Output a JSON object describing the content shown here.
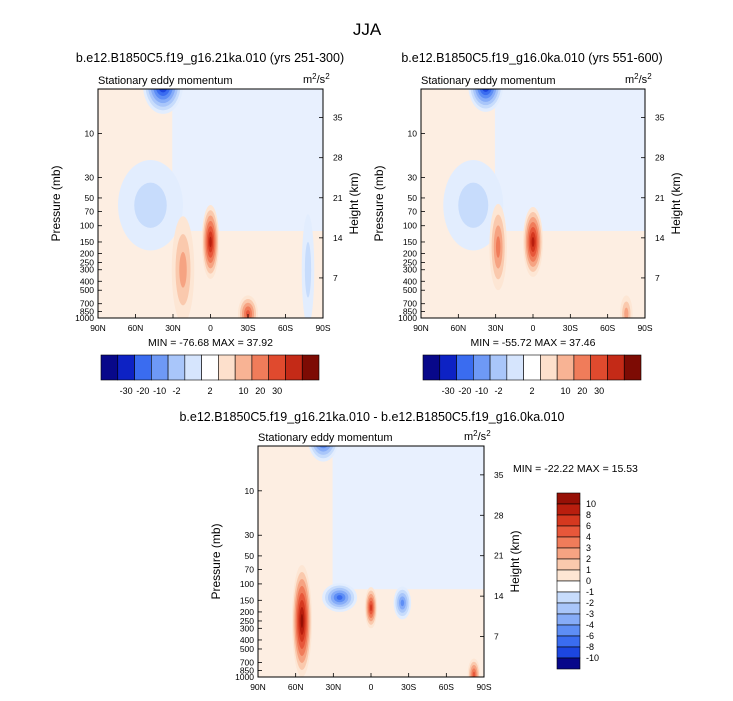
{
  "figure": {
    "title": "JJA"
  },
  "colors": {
    "neg": [
      "#08088a",
      "#0d22c4",
      "#1c46e0",
      "#3a6cf0",
      "#5e8ef5",
      "#86acf8",
      "#a9c6fa",
      "#c7dcfc",
      "#e2edfe"
    ],
    "pos": [
      "#fde6d4",
      "#fac9ad",
      "#f6a382",
      "#f07c5a",
      "#e7573a",
      "#d5381f",
      "#b91e0e",
      "#971006",
      "#6e0803"
    ]
  },
  "chart_data": [
    {
      "id": "panel1",
      "type": "heatmap",
      "title": "b.e12.B1850C5.f19_g16.21ka.010 (yrs 251-300)",
      "subtitle_left": "Stationary eddy momentum",
      "units_base": "m",
      "units_exp1": "2",
      "units_mid": "/s",
      "units_exp2": "2",
      "ylabel": "Pressure (mb)",
      "ylabel_right": "Height (km)",
      "xticks": [
        "90N",
        "60N",
        "30N",
        "0",
        "30S",
        "60S",
        "90S"
      ],
      "yticks": [
        "10",
        "30",
        "50",
        "70",
        "100",
        "150",
        "200",
        "250",
        "300",
        "400",
        "500",
        "700",
        "850",
        "1000"
      ],
      "heights": [
        "35",
        "28",
        "21",
        "14",
        "7"
      ],
      "stats": "MIN = -76.68  MAX = 37.92",
      "levels": [
        "-30",
        "-20",
        "-10",
        "-2",
        "2",
        "10",
        "20",
        "30"
      ],
      "blobs": [
        {
          "lat": 38,
          "p": 3.0,
          "level": 8,
          "sx": 16,
          "sy": 120,
          "sign": -1
        },
        {
          "lat": 48,
          "p": 60,
          "level": 2,
          "sx": 26,
          "sy": 200,
          "sign": -1
        },
        {
          "lat": 22,
          "p": 300,
          "level": 3,
          "sx": 9,
          "sy": 240,
          "sign": 1
        },
        {
          "lat": 0,
          "p": 150,
          "level": 7,
          "sx": 7,
          "sy": 160,
          "sign": 1
        },
        {
          "lat": -78,
          "p": 300,
          "level": 2,
          "sx": 5,
          "sy": 250,
          "sign": -1
        },
        {
          "lat": -30,
          "p": 900,
          "level": 5,
          "sx": 8,
          "sy": 70,
          "sign": 1
        }
      ]
    },
    {
      "id": "panel2",
      "type": "heatmap",
      "title": "b.e12.B1850C5.f19_g16.0ka.010 (yrs 551-600)",
      "subtitle_left": "Stationary eddy momentum",
      "units_base": "m",
      "units_exp1": "2",
      "units_mid": "/s",
      "units_exp2": "2",
      "ylabel": "Pressure (mb)",
      "ylabel_right": "Height (km)",
      "xticks": [
        "90N",
        "60N",
        "30N",
        "0",
        "30S",
        "60S",
        "90S"
      ],
      "yticks": [
        "10",
        "30",
        "50",
        "70",
        "100",
        "150",
        "200",
        "250",
        "300",
        "400",
        "500",
        "700",
        "850",
        "1000"
      ],
      "heights": [
        "35",
        "28",
        "21",
        "14",
        "7"
      ],
      "stats": "MIN = -55.72  MAX = 37.46",
      "levels": [
        "-30",
        "-20",
        "-10",
        "-2",
        "2",
        "10",
        "20",
        "30"
      ],
      "blobs": [
        {
          "lat": 38,
          "p": 3.0,
          "level": 8,
          "sx": 14,
          "sy": 110,
          "sign": -1
        },
        {
          "lat": 48,
          "p": 60,
          "level": 2,
          "sx": 24,
          "sy": 200,
          "sign": -1
        },
        {
          "lat": 28,
          "p": 170,
          "level": 4,
          "sx": 7,
          "sy": 190,
          "sign": 1
        },
        {
          "lat": 0,
          "p": 150,
          "level": 7,
          "sx": 8,
          "sy": 150,
          "sign": 1
        },
        {
          "lat": -75,
          "p": 900,
          "level": 3,
          "sx": 5,
          "sy": 70,
          "sign": 1
        }
      ]
    },
    {
      "id": "panel3",
      "type": "heatmap",
      "title": "b.e12.B1850C5.f19_g16.21ka.010 - b.e12.B1850C5.f19_g16.0ka.010",
      "subtitle_left": "Stationary eddy momentum",
      "units_base": "m",
      "units_exp1": "2",
      "units_mid": "/s",
      "units_exp2": "2",
      "ylabel": "Pressure (mb)",
      "ylabel_right": "Height (km)",
      "xticks": [
        "90N",
        "60N",
        "30N",
        "0",
        "30S",
        "60S",
        "90S"
      ],
      "yticks": [
        "10",
        "30",
        "50",
        "70",
        "100",
        "150",
        "200",
        "250",
        "300",
        "400",
        "500",
        "700",
        "850",
        "1000"
      ],
      "heights": [
        "35",
        "28",
        "21",
        "14",
        "7"
      ],
      "stats": "MIN = -22.22  MAX = 15.53",
      "levels": [
        "10",
        "8",
        "6",
        "4",
        "3",
        "2",
        "1",
        "0",
        "-1",
        "-2",
        "-3",
        "-4",
        "-6",
        "-8",
        "-10"
      ],
      "blobs": [
        {
          "lat": 38,
          "p": 2.5,
          "level": 8,
          "sx": 13,
          "sy": 110,
          "sign": -1
        },
        {
          "lat": 55,
          "p": 250,
          "level": 8,
          "sx": 8,
          "sy": 250,
          "sign": 1
        },
        {
          "lat": 25,
          "p": 140,
          "level": 6,
          "sx": 14,
          "sy": 50,
          "sign": -1
        },
        {
          "lat": 0,
          "p": 180,
          "level": 6,
          "sx": 5,
          "sy": 80,
          "sign": 1
        },
        {
          "lat": -25,
          "p": 160,
          "level": 5,
          "sx": 7,
          "sy": 60,
          "sign": -1
        },
        {
          "lat": -82,
          "p": 950,
          "level": 5,
          "sx": 5,
          "sy": 60,
          "sign": 1
        }
      ]
    }
  ]
}
